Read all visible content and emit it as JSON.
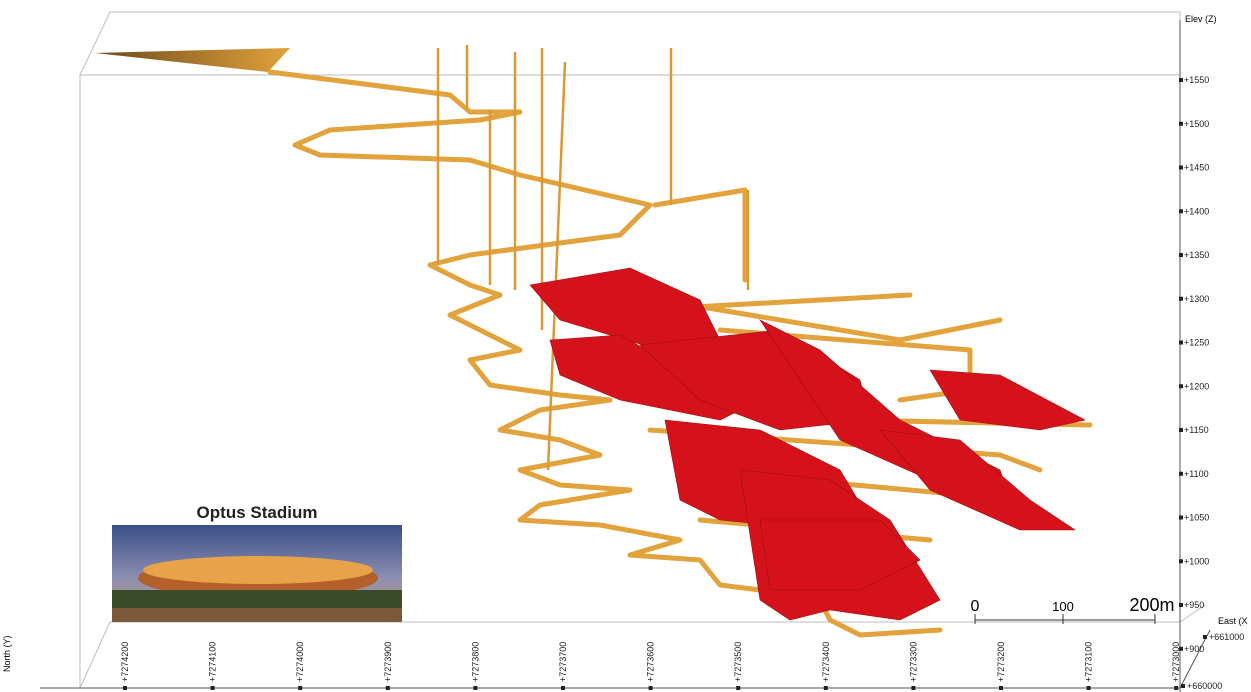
{
  "axes": {
    "elevation": {
      "title": "Elev (Z)",
      "labels": [
        "+1550",
        "+1500",
        "+1450",
        "+1400",
        "+1350",
        "+1300",
        "+1250",
        "+1200",
        "+1150",
        "+1100",
        "+1050",
        "+1000",
        "+950",
        "+900"
      ]
    },
    "north": {
      "title": "North (Y)",
      "labels": [
        "+7274200",
        "+7274100",
        "+7274000",
        "+7273900",
        "+7273800",
        "+7273700",
        "+7273600",
        "+7273500",
        "+7273400",
        "+7273300",
        "+7273200",
        "+7273100",
        "+7273000"
      ]
    },
    "east": {
      "title": "East (X",
      "labels": [
        "+661000",
        "+660000"
      ]
    }
  },
  "scale_bar": {
    "labels": [
      "0",
      "100",
      "200m"
    ]
  },
  "inset": {
    "title": "Optus Stadium"
  }
}
